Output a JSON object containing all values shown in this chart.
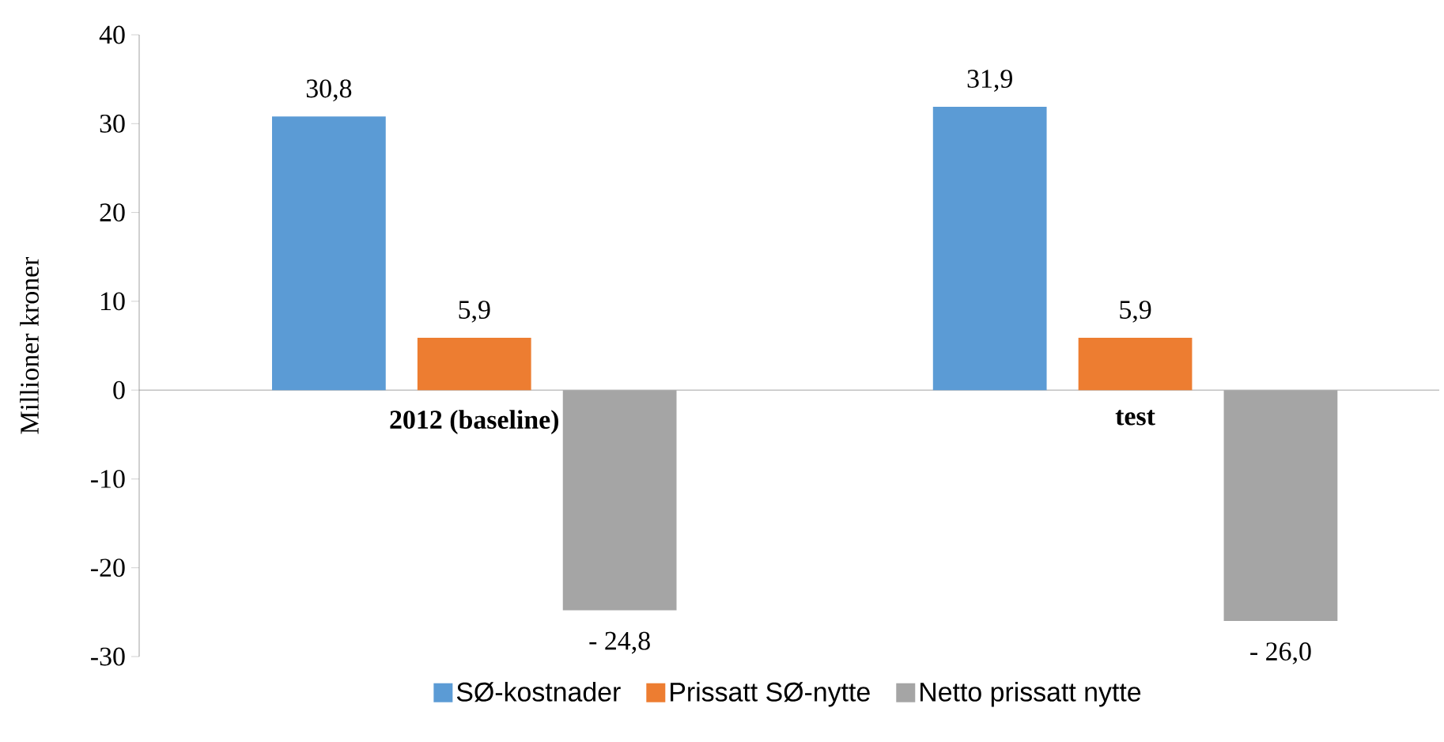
{
  "chart_data": {
    "type": "bar",
    "categories": [
      "2012 (baseline)",
      "test"
    ],
    "ylabel": "Millioner kroner",
    "ylim": [
      -30,
      40
    ],
    "yticks": [
      -30,
      -20,
      -10,
      0,
      10,
      20,
      30,
      40
    ],
    "legend": "bottom",
    "series": [
      {
        "name": "SØ-kostnader",
        "color": "#5b9bd5",
        "values": [
          30.8,
          31.9
        ],
        "value_labels": [
          "30,8",
          "31,9"
        ]
      },
      {
        "name": "Prissatt SØ-nytte",
        "color": "#ed7d31",
        "values": [
          5.9,
          5.9
        ],
        "value_labels": [
          "5,9",
          "5,9"
        ]
      },
      {
        "name": "Netto prissatt nytte",
        "color": "#a5a5a5",
        "values": [
          -24.8,
          -26.0
        ],
        "value_labels": [
          "- 24,8",
          "- 26,0"
        ]
      }
    ]
  }
}
